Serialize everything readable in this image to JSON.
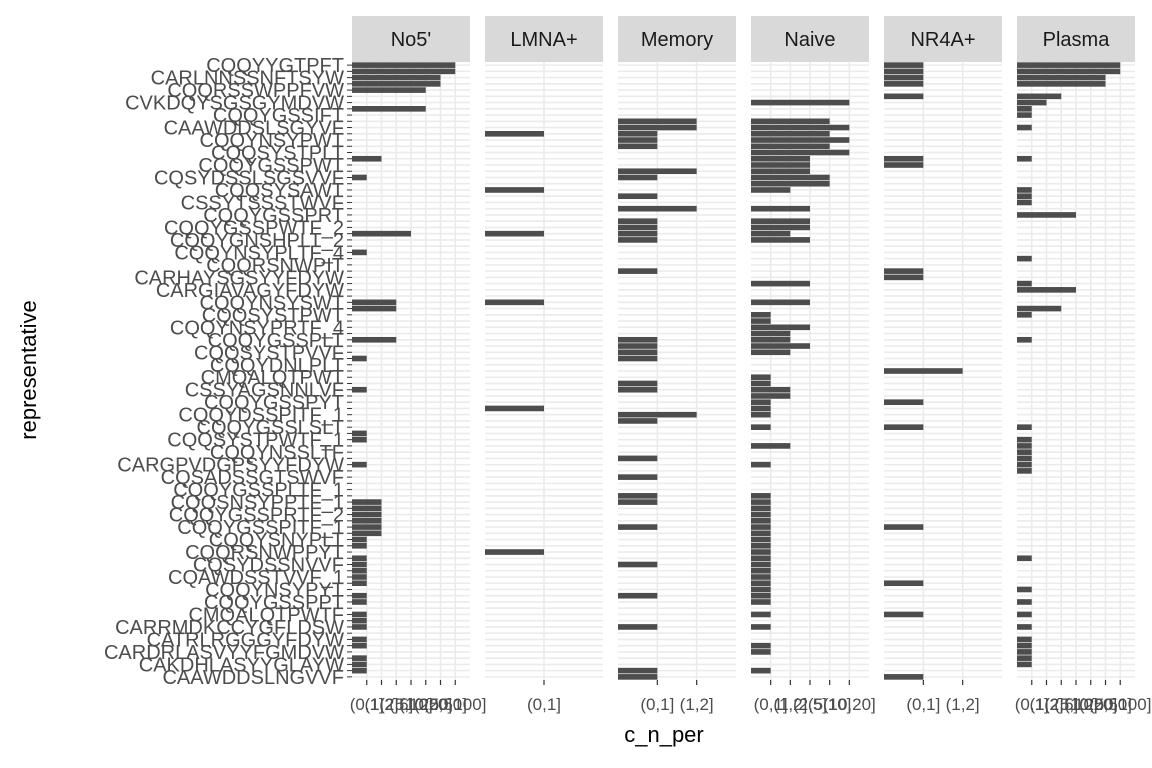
{
  "chart_data": {
    "type": "bar",
    "orientation": "horizontal",
    "faceted": true,
    "xlabel": "c_n_per",
    "ylabel": "representative",
    "grid": true,
    "row_count": 99,
    "visible_y_labels": [
      "CQQYYGTPFT",
      "CARLNNSSNFTSYW",
      "CQQRSSWPPFVW",
      "CVKDQYSGSGYMDVW",
      "CQQYGSSIFT",
      "CAAWDDSLSGYVF",
      "CQQYNSYPWT",
      "CQQSYSTPLT",
      "CQQYGSSPWT",
      "CQSYDSSLSGSVVF",
      "CQQSYSAWT",
      "CSSYTSSSTWVF",
      "CQQYGSSPRT",
      "CQQYGSSPWTF_2",
      "CQQYGNSHPLT_2",
      "CQQYNSYPLTF_4",
      "CQQRSNWPIT",
      "CARHAYSGSYYFDYW",
      "CARGIAVAGYFDYW",
      "CQQYNSYSWT",
      "CQQSYSTPWT",
      "CQQYNSYPRTF_4",
      "CQQYGSSPLT",
      "CQQSYSTPVVF",
      "CQQYDNLPLT",
      "CMQALQTPWT",
      "CSSYAGSNNLVF",
      "CQQYGSSPYT",
      "CQQYDSSPITF_1",
      "CQQYGSSLSLT",
      "CQQSYSTPWTF_1",
      "CQQYNSSLTF",
      "CARGPVDGPSYYFDYW",
      "CQSADSSGTSWVF",
      "CQQYGSSPLTF_1",
      "CQQSNSYPPTF_1",
      "CQQYGSSPRTF_2",
      "CQQYGSSPITF_1",
      "CQQYSNYPLT",
      "CQQRSNWPPYT",
      "CQSYDSSNVVF",
      "CQAWDSSTVVF_1",
      "CQQYNSYPYT",
      "CQQYGSSPPT",
      "CMQALQTPWTF",
      "CARRMDKCCYGFLDSW",
      "CATRLRGGGYFDYW",
      "CARDRLASVYYFGMDVW",
      "CAKDHLASYYGLAYW",
      "CAAWDDSLNGVVF"
    ],
    "panels": [
      {
        "name": "No5'",
        "categories": [
          "(0,1]",
          "(1,2]",
          "(2,5]",
          "(5,10]",
          "(10,20]",
          "(20,50]",
          "(50,100]"
        ],
        "bars": [
          {
            "row": 0,
            "value": 7
          },
          {
            "row": 1,
            "value": 7
          },
          {
            "row": 2,
            "value": 6
          },
          {
            "row": 3,
            "value": 6
          },
          {
            "row": 4,
            "value": 5
          },
          {
            "row": 7,
            "value": 5
          },
          {
            "row": 15,
            "value": 2
          },
          {
            "row": 18,
            "value": 1
          },
          {
            "row": 27,
            "value": 4
          },
          {
            "row": 30,
            "value": 1
          },
          {
            "row": 38,
            "value": 3
          },
          {
            "row": 39,
            "value": 3
          },
          {
            "row": 44,
            "value": 3
          },
          {
            "row": 47,
            "value": 1
          },
          {
            "row": 52,
            "value": 1
          },
          {
            "row": 59,
            "value": 1
          },
          {
            "row": 60,
            "value": 1
          },
          {
            "row": 64,
            "value": 1
          },
          {
            "row": 70,
            "value": 2
          },
          {
            "row": 71,
            "value": 2
          },
          {
            "row": 72,
            "value": 2
          },
          {
            "row": 73,
            "value": 2
          },
          {
            "row": 74,
            "value": 2
          },
          {
            "row": 75,
            "value": 2
          },
          {
            "row": 76,
            "value": 1
          },
          {
            "row": 77,
            "value": 1
          },
          {
            "row": 79,
            "value": 1
          },
          {
            "row": 80,
            "value": 1
          },
          {
            "row": 81,
            "value": 1
          },
          {
            "row": 82,
            "value": 1
          },
          {
            "row": 83,
            "value": 1
          },
          {
            "row": 85,
            "value": 1
          },
          {
            "row": 86,
            "value": 1
          },
          {
            "row": 88,
            "value": 1
          },
          {
            "row": 89,
            "value": 1
          },
          {
            "row": 90,
            "value": 1
          },
          {
            "row": 92,
            "value": 1
          },
          {
            "row": 93,
            "value": 1
          },
          {
            "row": 95,
            "value": 1
          },
          {
            "row": 96,
            "value": 1
          },
          {
            "row": 97,
            "value": 1
          }
        ]
      },
      {
        "name": "LMNA+",
        "categories": [
          "(0,1]"
        ],
        "bars": [
          {
            "row": 11,
            "value": 1
          },
          {
            "row": 20,
            "value": 1
          },
          {
            "row": 27,
            "value": 1
          },
          {
            "row": 38,
            "value": 1
          },
          {
            "row": 55,
            "value": 1
          },
          {
            "row": 78,
            "value": 1
          }
        ]
      },
      {
        "name": "Memory",
        "categories": [
          "(0,1]",
          "(1,2]"
        ],
        "bars": [
          {
            "row": 9,
            "value": 2
          },
          {
            "row": 10,
            "value": 2
          },
          {
            "row": 11,
            "value": 1
          },
          {
            "row": 12,
            "value": 1
          },
          {
            "row": 13,
            "value": 1
          },
          {
            "row": 17,
            "value": 2
          },
          {
            "row": 18,
            "value": 1
          },
          {
            "row": 21,
            "value": 1
          },
          {
            "row": 23,
            "value": 2
          },
          {
            "row": 25,
            "value": 1
          },
          {
            "row": 26,
            "value": 1
          },
          {
            "row": 27,
            "value": 1
          },
          {
            "row": 28,
            "value": 1
          },
          {
            "row": 33,
            "value": 1
          },
          {
            "row": 44,
            "value": 1
          },
          {
            "row": 45,
            "value": 1
          },
          {
            "row": 46,
            "value": 1
          },
          {
            "row": 47,
            "value": 1
          },
          {
            "row": 51,
            "value": 1
          },
          {
            "row": 52,
            "value": 1
          },
          {
            "row": 56,
            "value": 2
          },
          {
            "row": 57,
            "value": 1
          },
          {
            "row": 63,
            "value": 1
          },
          {
            "row": 66,
            "value": 1
          },
          {
            "row": 69,
            "value": 1
          },
          {
            "row": 70,
            "value": 1
          },
          {
            "row": 74,
            "value": 1
          },
          {
            "row": 80,
            "value": 1
          },
          {
            "row": 85,
            "value": 1
          },
          {
            "row": 90,
            "value": 1
          },
          {
            "row": 97,
            "value": 1
          },
          {
            "row": 98,
            "value": 1
          }
        ]
      },
      {
        "name": "Naive",
        "categories": [
          "(0,1]",
          "(1,2]",
          "(2,5]",
          "(5,10]",
          "(10,20]"
        ],
        "bars": [
          {
            "row": 6,
            "value": 5
          },
          {
            "row": 9,
            "value": 4
          },
          {
            "row": 10,
            "value": 5
          },
          {
            "row": 11,
            "value": 4
          },
          {
            "row": 12,
            "value": 5
          },
          {
            "row": 13,
            "value": 4
          },
          {
            "row": 14,
            "value": 5
          },
          {
            "row": 15,
            "value": 3
          },
          {
            "row": 16,
            "value": 3
          },
          {
            "row": 17,
            "value": 3
          },
          {
            "row": 18,
            "value": 4
          },
          {
            "row": 19,
            "value": 4
          },
          {
            "row": 20,
            "value": 2
          },
          {
            "row": 23,
            "value": 3
          },
          {
            "row": 25,
            "value": 3
          },
          {
            "row": 26,
            "value": 3
          },
          {
            "row": 27,
            "value": 2
          },
          {
            "row": 28,
            "value": 3
          },
          {
            "row": 35,
            "value": 3
          },
          {
            "row": 38,
            "value": 3
          },
          {
            "row": 40,
            "value": 1
          },
          {
            "row": 41,
            "value": 1
          },
          {
            "row": 42,
            "value": 3
          },
          {
            "row": 43,
            "value": 2
          },
          {
            "row": 44,
            "value": 2
          },
          {
            "row": 45,
            "value": 3
          },
          {
            "row": 46,
            "value": 2
          },
          {
            "row": 50,
            "value": 1
          },
          {
            "row": 51,
            "value": 1
          },
          {
            "row": 52,
            "value": 2
          },
          {
            "row": 53,
            "value": 2
          },
          {
            "row": 54,
            "value": 1
          },
          {
            "row": 55,
            "value": 1
          },
          {
            "row": 56,
            "value": 1
          },
          {
            "row": 58,
            "value": 1
          },
          {
            "row": 61,
            "value": 2
          },
          {
            "row": 64,
            "value": 1
          },
          {
            "row": 69,
            "value": 1
          },
          {
            "row": 70,
            "value": 1
          },
          {
            "row": 71,
            "value": 1
          },
          {
            "row": 72,
            "value": 1
          },
          {
            "row": 73,
            "value": 1
          },
          {
            "row": 74,
            "value": 1
          },
          {
            "row": 75,
            "value": 1
          },
          {
            "row": 76,
            "value": 1
          },
          {
            "row": 77,
            "value": 1
          },
          {
            "row": 78,
            "value": 1
          },
          {
            "row": 79,
            "value": 1
          },
          {
            "row": 80,
            "value": 1
          },
          {
            "row": 81,
            "value": 1
          },
          {
            "row": 82,
            "value": 1
          },
          {
            "row": 83,
            "value": 1
          },
          {
            "row": 84,
            "value": 1
          },
          {
            "row": 85,
            "value": 1
          },
          {
            "row": 86,
            "value": 1
          },
          {
            "row": 88,
            "value": 1
          },
          {
            "row": 90,
            "value": 1
          },
          {
            "row": 93,
            "value": 1
          },
          {
            "row": 94,
            "value": 1
          },
          {
            "row": 97,
            "value": 1
          }
        ]
      },
      {
        "name": "NR4A+",
        "categories": [
          "(0,1]",
          "(1,2]"
        ],
        "bars": [
          {
            "row": 0,
            "value": 1
          },
          {
            "row": 1,
            "value": 1
          },
          {
            "row": 2,
            "value": 1
          },
          {
            "row": 3,
            "value": 1
          },
          {
            "row": 5,
            "value": 1
          },
          {
            "row": 15,
            "value": 1
          },
          {
            "row": 16,
            "value": 1
          },
          {
            "row": 33,
            "value": 1
          },
          {
            "row": 34,
            "value": 1
          },
          {
            "row": 49,
            "value": 2
          },
          {
            "row": 54,
            "value": 1
          },
          {
            "row": 58,
            "value": 1
          },
          {
            "row": 74,
            "value": 1
          },
          {
            "row": 83,
            "value": 1
          },
          {
            "row": 88,
            "value": 1
          },
          {
            "row": 98,
            "value": 1
          }
        ]
      },
      {
        "name": "Plasma",
        "categories": [
          "(0,1]",
          "(1,2]",
          "(2,5]",
          "(5,10]",
          "(10,20]",
          "(20,50]",
          "(50,100]"
        ],
        "bars": [
          {
            "row": 0,
            "value": 7
          },
          {
            "row": 1,
            "value": 7
          },
          {
            "row": 2,
            "value": 6
          },
          {
            "row": 3,
            "value": 6
          },
          {
            "row": 5,
            "value": 3
          },
          {
            "row": 6,
            "value": 2
          },
          {
            "row": 7,
            "value": 1
          },
          {
            "row": 8,
            "value": 1
          },
          {
            "row": 10,
            "value": 1
          },
          {
            "row": 15,
            "value": 1
          },
          {
            "row": 20,
            "value": 1
          },
          {
            "row": 21,
            "value": 1
          },
          {
            "row": 22,
            "value": 1
          },
          {
            "row": 24,
            "value": 4
          },
          {
            "row": 31,
            "value": 1
          },
          {
            "row": 35,
            "value": 1
          },
          {
            "row": 36,
            "value": 4
          },
          {
            "row": 39,
            "value": 3
          },
          {
            "row": 40,
            "value": 1
          },
          {
            "row": 44,
            "value": 1
          },
          {
            "row": 58,
            "value": 1
          },
          {
            "row": 60,
            "value": 1
          },
          {
            "row": 61,
            "value": 1
          },
          {
            "row": 62,
            "value": 1
          },
          {
            "row": 63,
            "value": 1
          },
          {
            "row": 64,
            "value": 1
          },
          {
            "row": 65,
            "value": 1
          },
          {
            "row": 79,
            "value": 1
          },
          {
            "row": 84,
            "value": 1
          },
          {
            "row": 86,
            "value": 1
          },
          {
            "row": 88,
            "value": 1
          },
          {
            "row": 90,
            "value": 1
          },
          {
            "row": 92,
            "value": 1
          },
          {
            "row": 93,
            "value": 1
          },
          {
            "row": 94,
            "value": 1
          },
          {
            "row": 95,
            "value": 1
          },
          {
            "row": 96,
            "value": 1
          }
        ]
      }
    ]
  },
  "colors": {
    "bar": "#4d4d4d",
    "grid": "#ebebeb",
    "strip_background": "#d9d9d9",
    "tick_text": "#4d4d4d",
    "axis_title": "#000000"
  }
}
